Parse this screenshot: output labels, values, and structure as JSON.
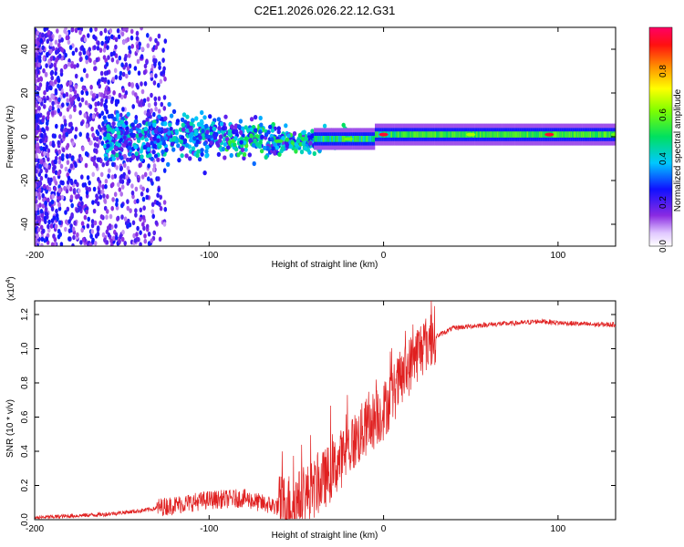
{
  "title": "C2E1.2026.026.22.12.G31",
  "chart_data": [
    {
      "type": "heatmap",
      "xlabel": "Height of straight line (km)",
      "ylabel": "Frequency (Hz)",
      "xlim": [
        -200,
        133
      ],
      "ylim": [
        -50,
        50
      ],
      "xticks": [
        -200,
        -100,
        0,
        100
      ],
      "yticks": [
        -40,
        -20,
        0,
        20,
        40
      ],
      "colorbar": {
        "label": "Normalized spectral amplitude",
        "range": [
          0,
          1
        ],
        "ticks": [
          "0.0",
          "0.2",
          "0.4",
          "0.6",
          "0.8"
        ]
      },
      "description_points": [
        {
          "x": -100,
          "band_center_hz": 0,
          "peak_amplitude": 0.3
        },
        {
          "x": -60,
          "band_center_hz": -2,
          "peak_amplitude": 0.55
        },
        {
          "x": -20,
          "band_center_hz": -1,
          "peak_amplitude": 0.6
        },
        {
          "x": 0,
          "band_center_hz": 1,
          "peak_amplitude": 0.95
        },
        {
          "x": 50,
          "band_center_hz": 1,
          "peak_amplitude": 0.65
        },
        {
          "x": 95,
          "band_center_hz": 1,
          "peak_amplitude": 0.95
        },
        {
          "x": 133,
          "band_center_hz": 1,
          "peak_amplitude": 0.6
        }
      ]
    },
    {
      "type": "line",
      "xlabel": "Height of straight line (km)",
      "ylabel": "SNR (10 * v/v)",
      "yscale_label": "(x10",
      "yscale_exp": "4",
      "yscale_close": ")",
      "xlim": [
        -200,
        133
      ],
      "ylim": [
        0,
        1.28
      ],
      "xticks": [
        -200,
        -100,
        0,
        100
      ],
      "yticks": [
        "0.0",
        "0.2",
        "0.4",
        "0.6",
        "0.8",
        "1.0",
        "1.2"
      ],
      "series": [
        {
          "name": "SNR",
          "color": "#e02020",
          "x": [
            -200,
            -180,
            -160,
            -140,
            -120,
            -100,
            -80,
            -70,
            -60,
            -50,
            -40,
            -30,
            -20,
            -10,
            0,
            10,
            20,
            30,
            40,
            60,
            80,
            90,
            100,
            120,
            133
          ],
          "y": [
            0.01,
            0.02,
            0.03,
            0.05,
            0.08,
            0.11,
            0.12,
            0.09,
            0.07,
            0.09,
            0.16,
            0.26,
            0.4,
            0.52,
            0.62,
            0.8,
            0.97,
            1.07,
            1.12,
            1.14,
            1.15,
            1.16,
            1.15,
            1.14,
            1.14
          ]
        }
      ]
    }
  ],
  "colors": {
    "line": "#e02020",
    "axis": "#000000"
  }
}
